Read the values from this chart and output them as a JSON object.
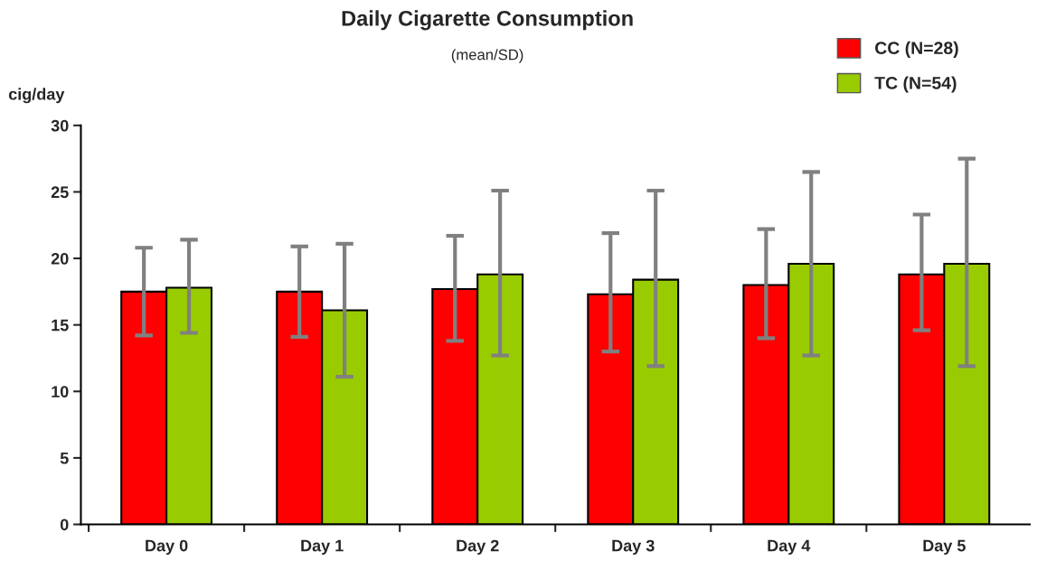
{
  "chart_data": {
    "type": "bar",
    "title": "Daily Cigarette Consumption",
    "subtitle": "(mean/SD)",
    "ylabel": "cig/day",
    "categories": [
      "Day 0",
      "Day 1",
      "Day 2",
      "Day 3",
      "Day 4",
      "Day 5"
    ],
    "series": [
      {
        "name": "CC (N=28)",
        "color": "#ff0000",
        "values": [
          17.5,
          17.5,
          17.7,
          17.3,
          18.0,
          18.8
        ],
        "errors": [
          [
            14.2,
            20.8
          ],
          [
            14.1,
            20.9
          ],
          [
            13.8,
            21.7
          ],
          [
            13.0,
            21.9
          ],
          [
            14.0,
            22.2
          ],
          [
            14.6,
            23.3
          ]
        ]
      },
      {
        "name": "TC (N=54)",
        "color": "#99cc00",
        "values": [
          17.8,
          16.1,
          18.8,
          18.4,
          19.6,
          19.6
        ],
        "errors": [
          [
            14.4,
            21.4
          ],
          [
            11.1,
            21.1
          ],
          [
            12.7,
            25.1
          ],
          [
            11.9,
            25.1
          ],
          [
            12.7,
            26.5
          ],
          [
            11.9,
            27.5
          ]
        ]
      }
    ],
    "ylim": [
      0,
      30
    ],
    "yticks": [
      0,
      5,
      10,
      15,
      20,
      25,
      30
    ],
    "grid": false,
    "legend": "top right"
  }
}
